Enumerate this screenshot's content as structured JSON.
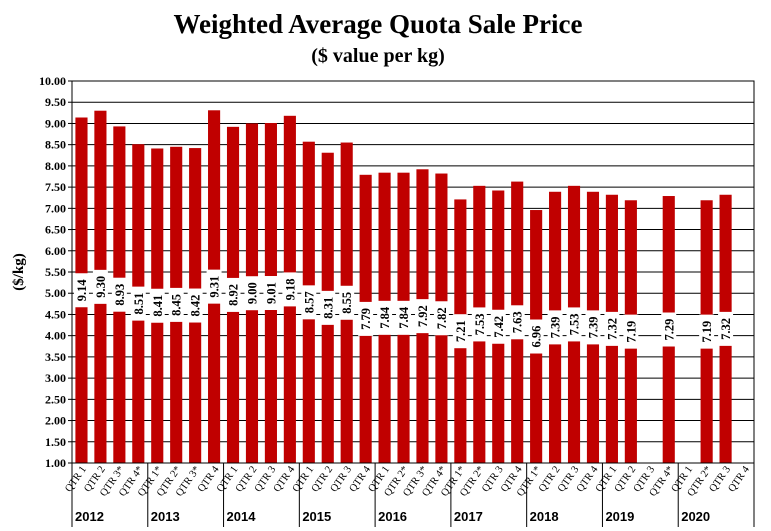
{
  "chart_data": {
    "type": "bar",
    "title": "Weighted Average Quota Sale Price",
    "subtitle": "($ value per kg)",
    "ylabel": "($/kg)",
    "xlabel": "",
    "ylim": [
      1.0,
      10.0
    ],
    "ytick_step": 0.5,
    "grid": true,
    "bar_color": "#c00000",
    "categories": [
      "QTR 1",
      "QTR 2",
      "QTR 3*",
      "QTR 4*",
      "QTR 1*",
      "QTR 2*",
      "QTR 3*",
      "QTR 4",
      "QTR 1",
      "QTR 2",
      "QTR 3",
      "QTR 4",
      "QTR 1",
      "QTR 2",
      "QTR 3",
      "QTR 4",
      "QTR 1",
      "QTR 2*",
      "QTR 3*",
      "QTR 4*",
      "QTR 1*",
      "QTR 2*",
      "QTR 3",
      "QTR 4",
      "QTR 1*",
      "QTR 2",
      "QTR 3",
      "QTR 4",
      "QTR 1",
      "QTR 2",
      "QTR 3",
      "QTR 4*",
      "QTR 1",
      "QTR 2*",
      "QTR 3",
      "QTR 4"
    ],
    "values": [
      9.14,
      9.3,
      8.93,
      8.51,
      8.41,
      8.45,
      8.42,
      9.31,
      8.92,
      9.0,
      9.01,
      9.18,
      8.57,
      8.31,
      8.55,
      7.79,
      7.84,
      7.84,
      7.92,
      7.82,
      7.21,
      7.53,
      7.42,
      7.63,
      6.96,
      7.39,
      7.53,
      7.39,
      7.32,
      7.19,
      null,
      7.29,
      null,
      7.19,
      7.32,
      null
    ],
    "data_labels": [
      "9.14",
      "9.30",
      "8.93",
      "8.51",
      "8.41",
      "8.45",
      "8.42",
      "9.31",
      "8.92",
      "9.00",
      "9.01",
      "9.18",
      "8.57",
      "8.31",
      "8.55",
      "7.79",
      "7.84",
      "7.84",
      "7.92",
      "7.82",
      "7.21",
      "7.53",
      "7.42",
      "7.63",
      "6.96",
      "7.39",
      "7.53",
      "7.39",
      "7.32",
      "7.19",
      "",
      "7.29",
      "",
      "7.19",
      "7.32",
      ""
    ],
    "years": [
      {
        "label": "2012",
        "start": 0,
        "end": 3
      },
      {
        "label": "2013",
        "start": 4,
        "end": 7
      },
      {
        "label": "2014",
        "start": 8,
        "end": 11
      },
      {
        "label": "2015",
        "start": 12,
        "end": 15
      },
      {
        "label": "2016",
        "start": 16,
        "end": 19
      },
      {
        "label": "2017",
        "start": 20,
        "end": 23
      },
      {
        "label": "2018",
        "start": 24,
        "end": 27
      },
      {
        "label": "2019",
        "start": 28,
        "end": 31
      },
      {
        "label": "2020",
        "start": 32,
        "end": 35
      }
    ]
  }
}
